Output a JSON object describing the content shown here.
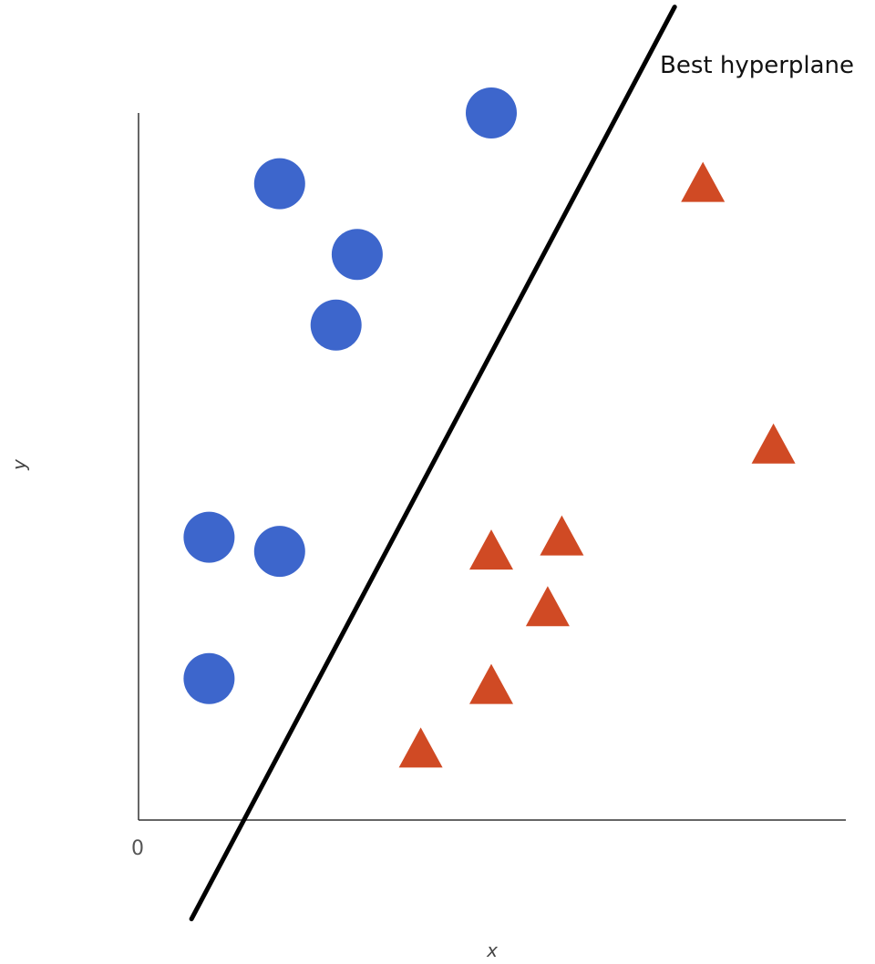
{
  "chart_data": {
    "type": "scatter",
    "title": "",
    "xlabel": "x",
    "ylabel": "y",
    "origin_label": "0",
    "xlim": [
      0,
      10
    ],
    "ylim": [
      0,
      10
    ],
    "grid": false,
    "colors": {
      "circle": "#3d66cc",
      "triangle": "#d04a24",
      "line": "#000000"
    },
    "series": [
      {
        "marker": "circle",
        "color": "#3d66cc",
        "points": [
          {
            "x": 5.0,
            "y": 10.0
          },
          {
            "x": 2.0,
            "y": 9.0
          },
          {
            "x": 3.1,
            "y": 8.0
          },
          {
            "x": 2.8,
            "y": 7.0
          },
          {
            "x": 1.0,
            "y": 4.0
          },
          {
            "x": 2.0,
            "y": 3.8
          },
          {
            "x": 1.0,
            "y": 2.0
          }
        ]
      },
      {
        "marker": "triangle",
        "color": "#d04a24",
        "points": [
          {
            "x": 8.0,
            "y": 9.0
          },
          {
            "x": 9.0,
            "y": 5.3
          },
          {
            "x": 6.0,
            "y": 4.0
          },
          {
            "x": 5.0,
            "y": 3.8
          },
          {
            "x": 5.8,
            "y": 3.0
          },
          {
            "x": 5.0,
            "y": 1.9
          },
          {
            "x": 4.0,
            "y": 1.0
          }
        ]
      }
    ],
    "hyperplane": {
      "label": "Best hyperplane",
      "start": {
        "x": 0.75,
        "y": -1.4
      },
      "end": {
        "x": 7.6,
        "y": 11.5
      }
    }
  }
}
